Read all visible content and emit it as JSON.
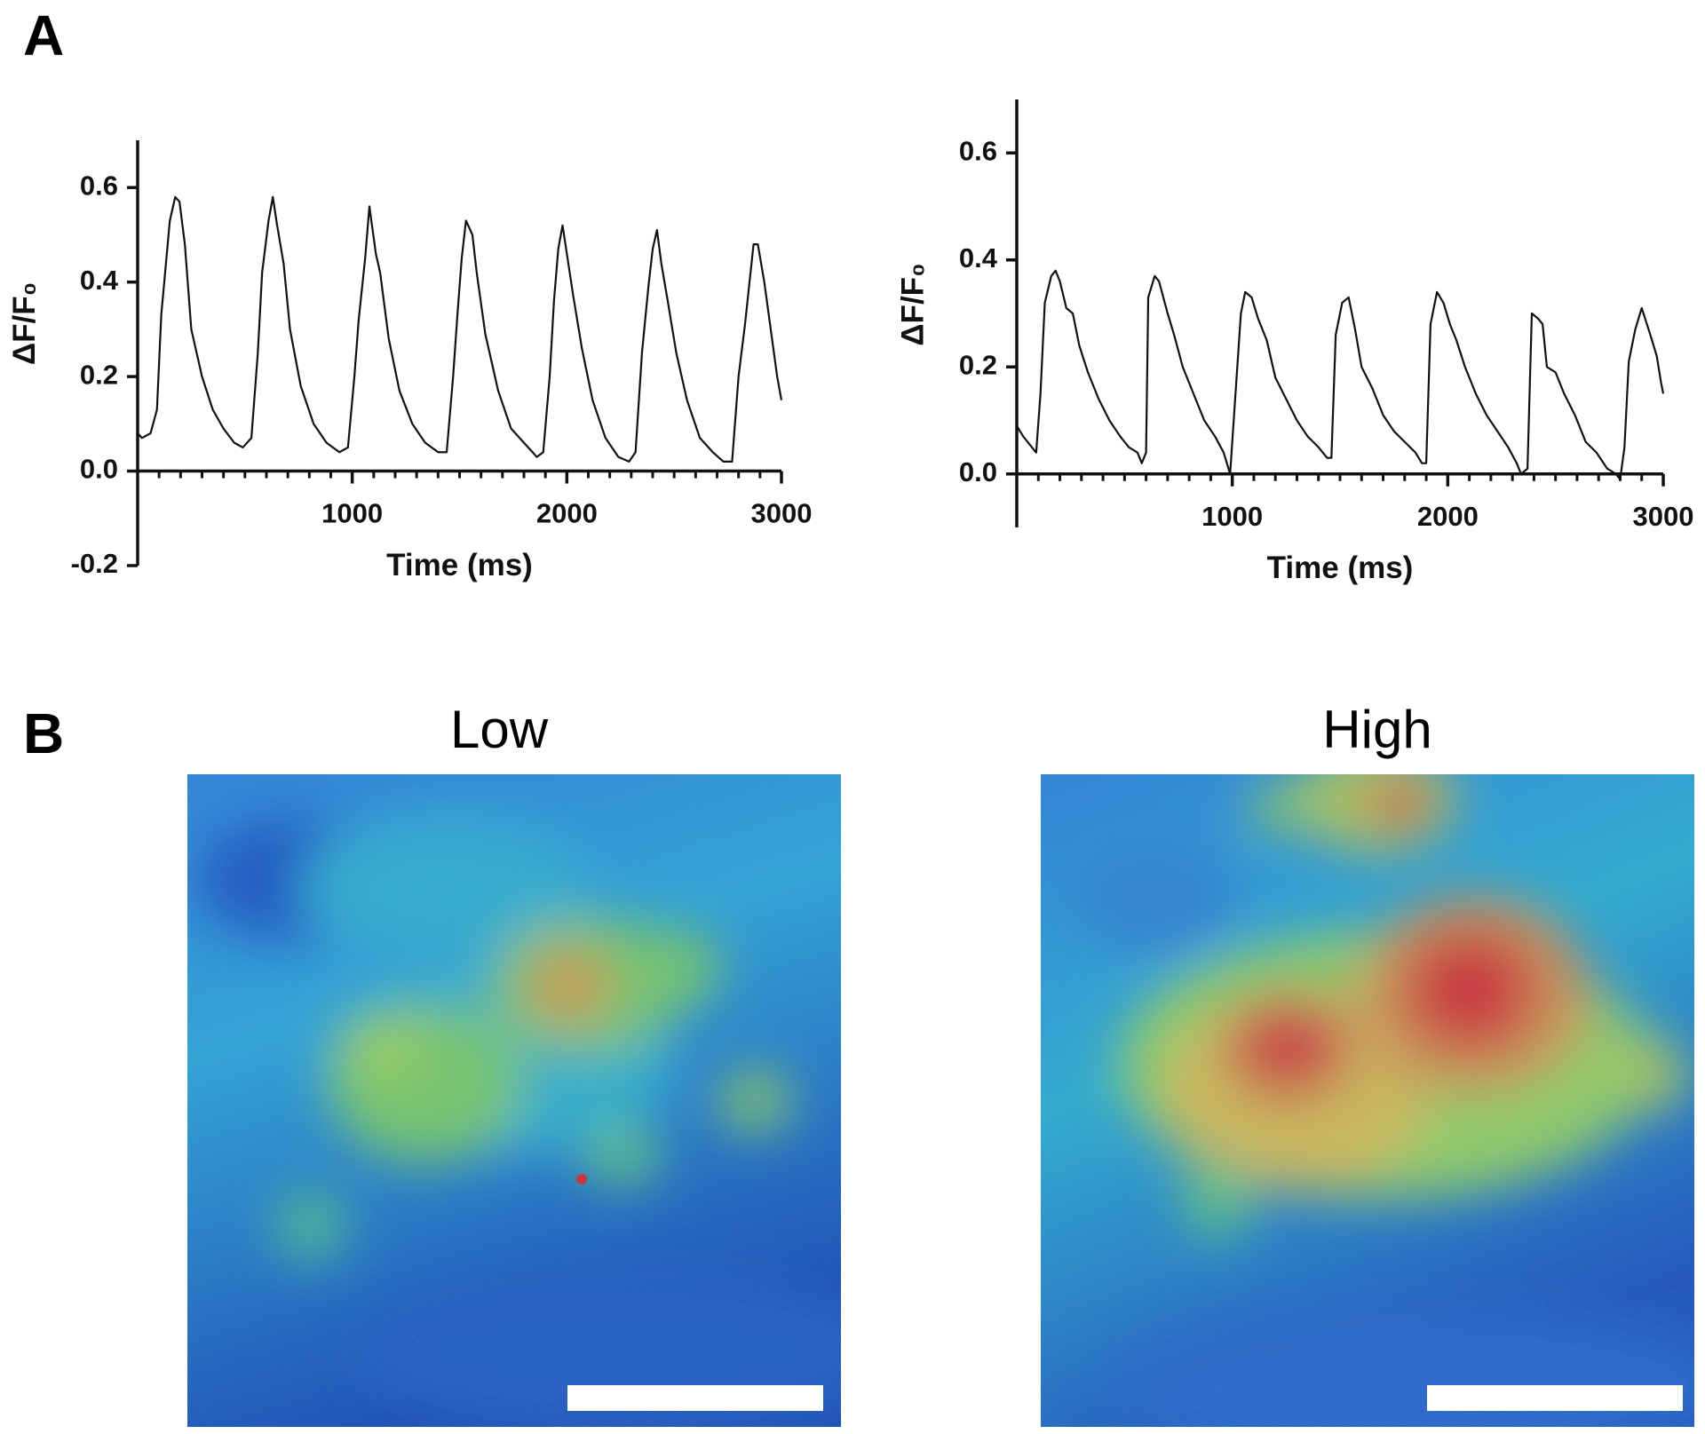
{
  "panel_labels": [
    "A",
    "B"
  ],
  "images": [
    {
      "title": "Low"
    },
    {
      "title": "High"
    }
  ],
  "chart_data": [
    {
      "type": "line",
      "xlabel": "Time (ms)",
      "ylabel": "ΔF/F₀",
      "xlim": [
        0,
        3000
      ],
      "ylim": [
        -0.2,
        0.7
      ],
      "xticks": [
        1000,
        2000,
        3000
      ],
      "xminorticks": [
        100,
        200,
        300,
        400,
        500,
        600,
        700,
        800,
        900,
        1100,
        1200,
        1300,
        1400,
        1500,
        1600,
        1700,
        1800,
        1900,
        2100,
        2200,
        2300,
        2400,
        2500,
        2600,
        2700,
        2800,
        2900
      ],
      "yticks": [
        -0.2,
        {
          "value": 0,
          "label": "0.0"
        },
        0.2,
        0.4,
        0.6
      ],
      "color": "#111111",
      "x": [
        0,
        20,
        60,
        90,
        110,
        150,
        175,
        195,
        220,
        250,
        300,
        350,
        400,
        450,
        490,
        530,
        560,
        580,
        610,
        630,
        650,
        680,
        710,
        760,
        820,
        880,
        940,
        980,
        1010,
        1030,
        1060,
        1080,
        1110,
        1130,
        1170,
        1220,
        1280,
        1340,
        1400,
        1440,
        1470,
        1490,
        1510,
        1530,
        1560,
        1580,
        1620,
        1680,
        1740,
        1800,
        1860,
        1890,
        1920,
        1940,
        1960,
        1980,
        2000,
        2030,
        2070,
        2120,
        2180,
        2240,
        2290,
        2320,
        2350,
        2380,
        2400,
        2420,
        2440,
        2470,
        2510,
        2560,
        2620,
        2680,
        2730,
        2770,
        2800,
        2830,
        2870,
        2890,
        2920,
        2950,
        2980,
        3000
      ],
      "values": [
        0.08,
        0.07,
        0.08,
        0.13,
        0.33,
        0.53,
        0.58,
        0.57,
        0.48,
        0.3,
        0.2,
        0.13,
        0.09,
        0.06,
        0.05,
        0.07,
        0.25,
        0.42,
        0.53,
        0.58,
        0.52,
        0.44,
        0.3,
        0.18,
        0.1,
        0.06,
        0.04,
        0.05,
        0.2,
        0.32,
        0.45,
        0.56,
        0.46,
        0.42,
        0.28,
        0.17,
        0.1,
        0.06,
        0.04,
        0.04,
        0.2,
        0.33,
        0.45,
        0.53,
        0.5,
        0.42,
        0.29,
        0.17,
        0.09,
        0.06,
        0.03,
        0.04,
        0.2,
        0.36,
        0.47,
        0.52,
        0.46,
        0.37,
        0.26,
        0.15,
        0.07,
        0.03,
        0.02,
        0.04,
        0.25,
        0.39,
        0.47,
        0.51,
        0.44,
        0.36,
        0.25,
        0.15,
        0.07,
        0.04,
        0.02,
        0.02,
        0.2,
        0.31,
        0.48,
        0.48,
        0.4,
        0.3,
        0.2,
        0.15
      ]
    },
    {
      "type": "line",
      "xlabel": "Time (ms)",
      "ylabel": "ΔF/F₀",
      "xlim": [
        0,
        3000
      ],
      "ylim": [
        -0.1,
        0.7
      ],
      "xticks": [
        1000,
        2000,
        3000
      ],
      "xminorticks": [
        100,
        200,
        300,
        400,
        500,
        600,
        700,
        800,
        900,
        1100,
        1200,
        1300,
        1400,
        1500,
        1600,
        1700,
        1800,
        1900,
        2100,
        2200,
        2300,
        2400,
        2500,
        2600,
        2700,
        2800,
        2900
      ],
      "yticks": [
        {
          "value": 0,
          "label": "0.0"
        },
        0.2,
        0.4,
        0.6
      ],
      "color": "#111111",
      "x": [
        0,
        30,
        70,
        90,
        110,
        130,
        160,
        180,
        200,
        230,
        260,
        290,
        330,
        380,
        430,
        480,
        520,
        560,
        580,
        600,
        610,
        640,
        660,
        700,
        730,
        770,
        820,
        870,
        920,
        960,
        990,
        1010,
        1040,
        1060,
        1090,
        1120,
        1160,
        1200,
        1250,
        1300,
        1350,
        1400,
        1440,
        1460,
        1480,
        1510,
        1540,
        1570,
        1600,
        1650,
        1700,
        1750,
        1800,
        1850,
        1880,
        1900,
        1920,
        1950,
        1980,
        2010,
        2040,
        2080,
        2130,
        2180,
        2230,
        2280,
        2320,
        2340,
        2370,
        2390,
        2420,
        2440,
        2460,
        2500,
        2540,
        2590,
        2640,
        2690,
        2740,
        2780,
        2800,
        2820,
        2840,
        2870,
        2900,
        2940,
        2970,
        2990,
        3000
      ],
      "values": [
        0.09,
        0.07,
        0.05,
        0.04,
        0.15,
        0.32,
        0.37,
        0.38,
        0.36,
        0.31,
        0.3,
        0.24,
        0.19,
        0.14,
        0.1,
        0.07,
        0.05,
        0.04,
        0.02,
        0.04,
        0.33,
        0.37,
        0.36,
        0.3,
        0.26,
        0.2,
        0.15,
        0.1,
        0.07,
        0.04,
        0.0,
        0.12,
        0.3,
        0.34,
        0.33,
        0.29,
        0.25,
        0.18,
        0.14,
        0.1,
        0.07,
        0.05,
        0.03,
        0.03,
        0.26,
        0.32,
        0.33,
        0.27,
        0.2,
        0.16,
        0.11,
        0.08,
        0.06,
        0.04,
        0.02,
        0.02,
        0.28,
        0.34,
        0.32,
        0.28,
        0.25,
        0.2,
        0.15,
        0.11,
        0.08,
        0.05,
        0.02,
        0.0,
        0.01,
        0.3,
        0.29,
        0.28,
        0.2,
        0.19,
        0.15,
        0.11,
        0.06,
        0.04,
        0.01,
        0.0,
        -0.01,
        0.05,
        0.21,
        0.27,
        0.31,
        0.26,
        0.22,
        0.17,
        0.15
      ]
    }
  ]
}
